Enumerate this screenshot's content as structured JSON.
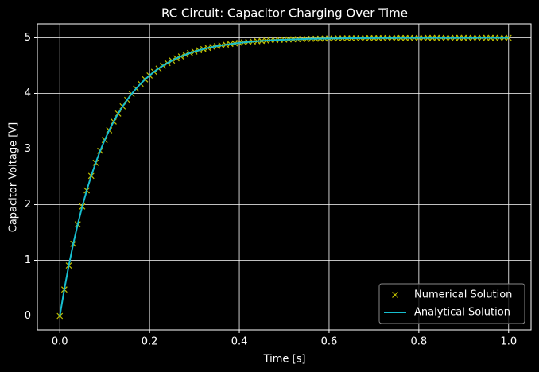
{
  "chart_data": {
    "type": "line",
    "title": "RC Circuit: Capacitor Charging Over Time",
    "x_label": "Time [s]",
    "y_label": "Capacitor Voltage [V]",
    "x": [
      0,
      0.01,
      0.02,
      0.03,
      0.04,
      0.05,
      0.06,
      0.07,
      0.08,
      0.09,
      0.1,
      0.11,
      0.12,
      0.13,
      0.14,
      0.15,
      0.16,
      0.17,
      0.18,
      0.19,
      0.2,
      0.21,
      0.22,
      0.23,
      0.24,
      0.25,
      0.26,
      0.27,
      0.28,
      0.29,
      0.3,
      0.31,
      0.32,
      0.33,
      0.34,
      0.35,
      0.36,
      0.37,
      0.38,
      0.39,
      0.4,
      0.41,
      0.42,
      0.43,
      0.44,
      0.45,
      0.46,
      0.47,
      0.48,
      0.49,
      0.5,
      0.51,
      0.52,
      0.53,
      0.54,
      0.55,
      0.56,
      0.57,
      0.58,
      0.59,
      0.6,
      0.61,
      0.62,
      0.63,
      0.64,
      0.65,
      0.66,
      0.67,
      0.68,
      0.69,
      0.7,
      0.71,
      0.72,
      0.73,
      0.74,
      0.75,
      0.76,
      0.77,
      0.78,
      0.79,
      0.8,
      0.81,
      0.82,
      0.83,
      0.84,
      0.85,
      0.86,
      0.87,
      0.88,
      0.89,
      0.9,
      0.91,
      0.92,
      0.93,
      0.94,
      0.95,
      0.96,
      0.97,
      0.98,
      0.99,
      1
    ],
    "series": [
      {
        "name": "Numerical Solution",
        "color": "#bfbf00",
        "marker": "x",
        "values": [
          0,
          0.476,
          0.906,
          1.296,
          1.648,
          1.967,
          2.256,
          2.517,
          2.753,
          2.967,
          3.161,
          3.336,
          3.494,
          3.637,
          3.767,
          3.884,
          3.991,
          4.087,
          4.174,
          4.252,
          4.323,
          4.388,
          4.446,
          4.499,
          4.546,
          4.59,
          4.629,
          4.664,
          4.696,
          4.725,
          4.751,
          4.775,
          4.796,
          4.816,
          4.833,
          4.849,
          4.863,
          4.876,
          4.888,
          4.899,
          4.908,
          4.917,
          4.925,
          4.932,
          4.939,
          4.944,
          4.95,
          4.955,
          4.959,
          4.963,
          4.966,
          4.97,
          4.972,
          4.975,
          4.977,
          4.98,
          4.982,
          4.983,
          4.985,
          4.986,
          4.988,
          4.989,
          4.99,
          4.991,
          4.992,
          4.992,
          4.993,
          4.994,
          4.994,
          4.995,
          4.995,
          4.996,
          4.996,
          4.997,
          4.997,
          4.997,
          4.998,
          4.998,
          4.998,
          4.998,
          4.998,
          4.998,
          4.999,
          4.999,
          4.999,
          4.999,
          4.999,
          4.999,
          4.999,
          4.999,
          4.999,
          4.999,
          4.999,
          5,
          5,
          5,
          5,
          5,
          5,
          5,
          5
        ]
      },
      {
        "name": "Analytical Solution",
        "color": "#17becf",
        "marker": "line",
        "values": [
          0,
          0.476,
          0.906,
          1.296,
          1.648,
          1.967,
          2.256,
          2.517,
          2.753,
          2.967,
          3.161,
          3.336,
          3.494,
          3.637,
          3.767,
          3.884,
          3.991,
          4.087,
          4.174,
          4.252,
          4.323,
          4.388,
          4.446,
          4.499,
          4.546,
          4.59,
          4.629,
          4.664,
          4.696,
          4.725,
          4.751,
          4.775,
          4.796,
          4.816,
          4.833,
          4.849,
          4.863,
          4.876,
          4.888,
          4.899,
          4.908,
          4.917,
          4.925,
          4.932,
          4.939,
          4.944,
          4.95,
          4.955,
          4.959,
          4.963,
          4.966,
          4.97,
          4.972,
          4.975,
          4.977,
          4.98,
          4.982,
          4.983,
          4.985,
          4.986,
          4.988,
          4.989,
          4.99,
          4.991,
          4.992,
          4.992,
          4.993,
          4.994,
          4.994,
          4.995,
          4.995,
          4.996,
          4.996,
          4.997,
          4.997,
          4.997,
          4.998,
          4.998,
          4.998,
          4.998,
          4.998,
          4.998,
          4.999,
          4.999,
          4.999,
          4.999,
          4.999,
          4.999,
          4.999,
          4.999,
          4.999,
          4.999,
          4.999,
          5,
          5,
          5,
          5,
          5,
          5,
          5,
          5
        ]
      }
    ],
    "xlim": [
      -0.05,
      1.05
    ],
    "xticks": [
      {
        "value": 0,
        "label": "0.0"
      },
      0.2,
      0.4,
      0.6,
      0.8,
      {
        "value": 1,
        "label": "1.0"
      }
    ],
    "ylim": [
      -0.25,
      5.25
    ],
    "yticks": [
      0,
      1,
      2,
      3,
      4,
      5
    ],
    "grid": true,
    "legend": "lower right"
  }
}
